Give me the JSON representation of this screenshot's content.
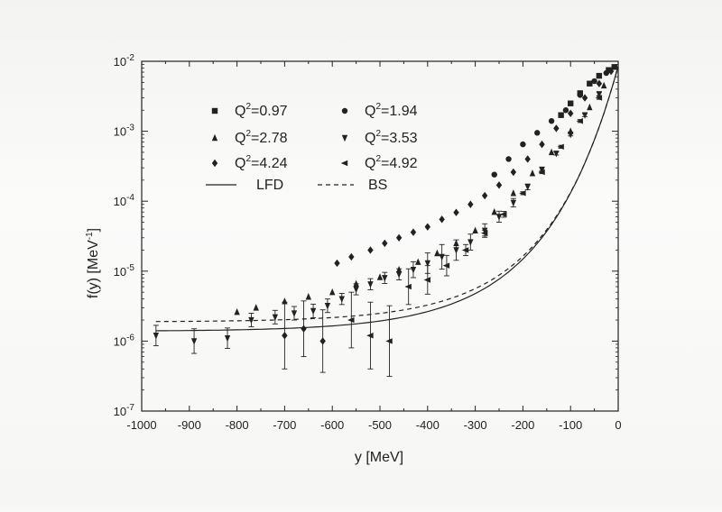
{
  "chart_data": {
    "type": "scatter",
    "title": "",
    "xlabel": "y [MeV]",
    "ylabel_main": "f(y) [MeV",
    "ylabel_sup": "-1",
    "ylabel_close": "]",
    "xlim": [
      -1000,
      0
    ],
    "ylim_log10": [
      -7,
      -2
    ],
    "xticks": [
      -1000,
      -900,
      -800,
      -700,
      -600,
      -500,
      -400,
      -300,
      -200,
      -100,
      0
    ],
    "xtick_labels": [
      "-1000",
      "-900",
      "-800",
      "-700",
      "-600",
      "-500",
      "-400",
      "-300",
      "-200",
      "-100",
      "0"
    ],
    "yticks_log10": [
      -7,
      -6,
      -5,
      -4,
      -3,
      -2
    ],
    "ytick_base": "10",
    "ytick_exps": [
      "-7",
      "-6",
      "-5",
      "-4",
      "-3",
      "-2"
    ],
    "legend_position": "top-left",
    "series": [
      {
        "name": "Q²=0.97",
        "label_prefix": "Q",
        "label_sup": "2",
        "label_value": "=0.97",
        "marker": "square",
        "points": [
          [
            -120,
            0.0017
          ],
          [
            -100,
            0.0025
          ],
          [
            -80,
            0.0035
          ],
          [
            -60,
            0.0048
          ],
          [
            -40,
            0.0062
          ],
          [
            -20,
            0.0075
          ],
          [
            -8,
            0.0083
          ]
        ]
      },
      {
        "name": "Q²=1.94",
        "label_prefix": "Q",
        "label_sup": "2",
        "label_value": "=1.94",
        "marker": "circle",
        "points": [
          [
            -260,
            0.00024
          ],
          [
            -230,
            0.0004
          ],
          [
            -200,
            0.00065
          ],
          [
            -170,
            0.00095
          ],
          [
            -140,
            0.0014
          ],
          [
            -110,
            0.002
          ],
          [
            -80,
            0.0033
          ],
          [
            -50,
            0.0052
          ],
          [
            -25,
            0.0068
          ]
        ]
      },
      {
        "name": "Q²=2.78",
        "label_prefix": "Q",
        "label_sup": "2",
        "label_value": "=2.78",
        "marker": "triangle-up",
        "points": [
          [
            -800,
            2.6e-06
          ],
          [
            -760,
            3e-06
          ],
          [
            -700,
            3.7e-06
          ],
          [
            -650,
            4.3e-06
          ],
          [
            -600,
            5e-06
          ],
          [
            -550,
            6.6e-06
          ],
          [
            -500,
            8.2e-06
          ],
          [
            -460,
            1.05e-05
          ],
          [
            -420,
            1.35e-05
          ],
          [
            -380,
            1.8e-05
          ],
          [
            -340,
            2.5e-05
          ],
          [
            -300,
            3.8e-05
          ],
          [
            -260,
            7e-05
          ],
          [
            -220,
            0.00013
          ],
          [
            -180,
            0.00025
          ],
          [
            -140,
            0.0005
          ],
          [
            -100,
            0.001
          ],
          [
            -60,
            0.0022
          ],
          [
            -30,
            0.0045
          ]
        ]
      },
      {
        "name": "Q²=3.53",
        "label_prefix": "Q",
        "label_sup": "2",
        "label_value": "=3.53",
        "marker": "triangle-down",
        "points": [
          [
            -970,
            1.2e-06
          ],
          [
            -890,
            1e-06
          ],
          [
            -820,
            1.1e-06
          ],
          [
            -770,
            2e-06
          ],
          [
            -720,
            2.2e-06
          ],
          [
            -680,
            2.5e-06
          ],
          [
            -640,
            2.7e-06
          ],
          [
            -610,
            3.2e-06
          ],
          [
            -580,
            4e-06
          ],
          [
            -550,
            5.5e-06
          ],
          [
            -520,
            6.5e-06
          ],
          [
            -490,
            8e-06
          ],
          [
            -460,
            9e-06
          ],
          [
            -430,
            1.05e-05
          ],
          [
            -400,
            1.3e-05
          ],
          [
            -370,
            1.6e-05
          ],
          [
            -340,
            2e-05
          ],
          [
            -310,
            2.6e-05
          ],
          [
            -280,
            3.8e-05
          ],
          [
            -250,
            6e-05
          ],
          [
            -220,
            9.5e-05
          ],
          [
            -190,
            0.00016
          ],
          [
            -160,
            0.00028
          ],
          [
            -130,
            0.00048
          ],
          [
            -100,
            0.0009
          ],
          [
            -70,
            0.0017
          ],
          [
            -40,
            0.0034
          ]
        ],
        "yerr_factor": [
          1.4,
          1.5,
          1.4,
          1.25,
          1.25,
          1.25,
          1.25,
          1.25,
          1.2,
          1.2,
          1.2,
          1.2,
          1.2,
          1.3,
          1.4,
          1.5,
          1.4,
          1.3,
          1.25,
          1.2,
          1.15,
          1.1,
          1.1,
          1.05,
          1.05,
          1.05,
          1.05
        ]
      },
      {
        "name": "Q²=4.24",
        "label_prefix": "Q",
        "label_sup": "2",
        "label_value": "=4.24",
        "marker": "diamond",
        "points": [
          [
            -700,
            1.2e-06
          ],
          [
            -660,
            1.5e-06
          ],
          [
            -620,
            1e-06
          ],
          [
            -590,
            1.3e-05
          ],
          [
            -560,
            1.6e-05
          ],
          [
            -520,
            2e-05
          ],
          [
            -490,
            2.5e-05
          ],
          [
            -460,
            3e-05
          ],
          [
            -430,
            3.6e-05
          ],
          [
            -400,
            4.3e-05
          ],
          [
            -370,
            5.5e-05
          ],
          [
            -340,
            6.9e-05
          ],
          [
            -310,
            9e-05
          ],
          [
            -280,
            0.00012
          ],
          [
            -250,
            0.00017
          ],
          [
            -220,
            0.00026
          ],
          [
            -190,
            0.0004
          ],
          [
            -160,
            0.00065
          ],
          [
            -130,
            0.0011
          ],
          [
            -100,
            0.0018
          ],
          [
            -70,
            0.003
          ],
          [
            -40,
            0.0048
          ],
          [
            -15,
            0.0072
          ]
        ],
        "yerr_factor": [
          3,
          2.5,
          2.8,
          1,
          1,
          1,
          1,
          1,
          1,
          1,
          1,
          1,
          1,
          1,
          1,
          1,
          1,
          1,
          1,
          1,
          1,
          1,
          1
        ]
      },
      {
        "name": "Q²=4.92",
        "label_prefix": "Q",
        "label_sup": "2",
        "label_value": "=4.92",
        "marker": "triangle-left",
        "points": [
          [
            -560,
            2e-06
          ],
          [
            -520,
            1.2e-06
          ],
          [
            -480,
            1e-06
          ],
          [
            -440,
            6e-06
          ],
          [
            -400,
            7.5e-06
          ],
          [
            -360,
            1.2e-05
          ],
          [
            -320,
            2e-05
          ],
          [
            -280,
            3.5e-05
          ],
          [
            -240,
            6.5e-05
          ],
          [
            -200,
            0.00013
          ],
          [
            -160,
            0.00026
          ],
          [
            -120,
            0.0006
          ],
          [
            -80,
            0.0014
          ],
          [
            -40,
            0.003
          ]
        ],
        "yerr_factor": [
          2.5,
          3,
          3.2,
          1.8,
          1.6,
          1.4,
          1.2,
          1.1,
          1.1,
          1.05,
          1.05,
          1.05,
          1.05,
          1.05
        ]
      }
    ],
    "curves": [
      {
        "name": "LFD",
        "style": "solid"
      },
      {
        "name": "BS",
        "style": "dashed"
      }
    ]
  }
}
